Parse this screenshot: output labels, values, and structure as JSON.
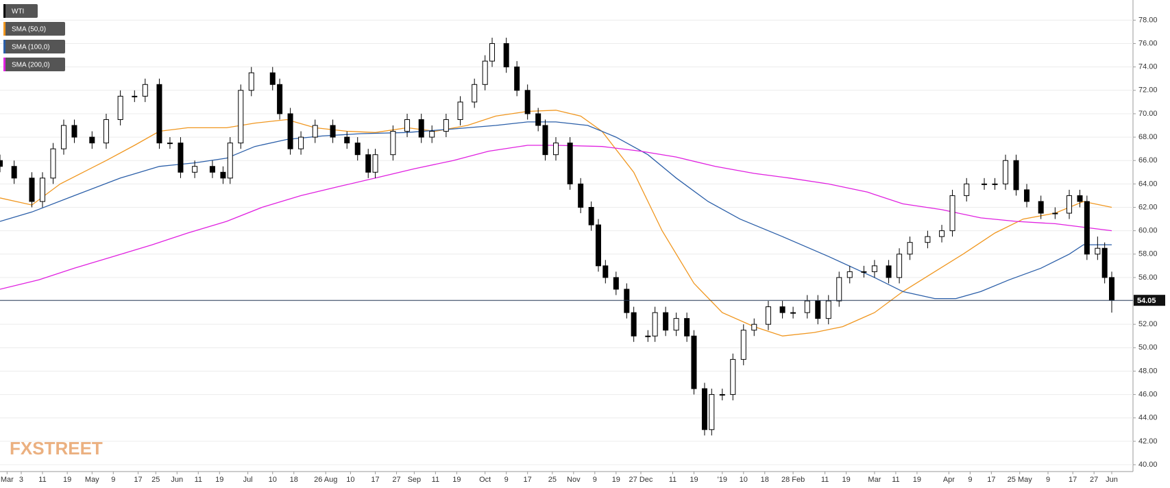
{
  "chart_data": {
    "type": "candlestick",
    "name": "WTI",
    "logo": "FXSTREET",
    "up_color": "#ffffff",
    "down_color": "#000000",
    "xlim": [
      0,
      320
    ],
    "ylim": [
      40,
      78
    ],
    "yticks": [
      {
        "value": 40,
        "label": "40.00"
      },
      {
        "value": 42,
        "label": "42.00"
      },
      {
        "value": 44,
        "label": "44.00"
      },
      {
        "value": 46,
        "label": "46.00"
      },
      {
        "value": 48,
        "label": "48.00"
      },
      {
        "value": 50,
        "label": "50.00"
      },
      {
        "value": 52,
        "label": "52.00"
      },
      {
        "value": 54,
        "label": "54.00"
      },
      {
        "value": 56,
        "label": "56.00"
      },
      {
        "value": 58,
        "label": "58.00"
      },
      {
        "value": 60,
        "label": "60.00"
      },
      {
        "value": 62,
        "label": "62.00"
      },
      {
        "value": 64,
        "label": "64.00"
      },
      {
        "value": 66,
        "label": "66.00"
      },
      {
        "value": 68,
        "label": "68.00"
      },
      {
        "value": 70,
        "label": "70.00"
      },
      {
        "value": 72,
        "label": "72.00"
      },
      {
        "value": 74,
        "label": "74.00"
      },
      {
        "value": 76,
        "label": "76.00"
      },
      {
        "value": 78,
        "label": "78.00"
      }
    ],
    "xticks": [
      {
        "value": 2,
        "label": "Mar"
      },
      {
        "value": 6,
        "label": "3"
      },
      {
        "value": 12,
        "label": "11"
      },
      {
        "value": 19,
        "label": "19"
      },
      {
        "value": 26,
        "label": "May"
      },
      {
        "value": 32,
        "label": "9"
      },
      {
        "value": 39,
        "label": "17"
      },
      {
        "value": 44,
        "label": "25"
      },
      {
        "value": 50,
        "label": "Jun"
      },
      {
        "value": 56,
        "label": "11"
      },
      {
        "value": 62,
        "label": "19"
      },
      {
        "value": 70,
        "label": "Jul"
      },
      {
        "value": 77,
        "label": "10"
      },
      {
        "value": 83,
        "label": "18"
      },
      {
        "value": 92,
        "label": "26 Aug"
      },
      {
        "value": 99,
        "label": "10"
      },
      {
        "value": 106,
        "label": "17"
      },
      {
        "value": 112,
        "label": "27"
      },
      {
        "value": 117,
        "label": "Sep"
      },
      {
        "value": 123,
        "label": "11"
      },
      {
        "value": 129,
        "label": "19"
      },
      {
        "value": 137,
        "label": "Oct"
      },
      {
        "value": 143,
        "label": "9"
      },
      {
        "value": 149,
        "label": "17"
      },
      {
        "value": 156,
        "label": "25"
      },
      {
        "value": 162,
        "label": "Nov"
      },
      {
        "value": 168,
        "label": "9"
      },
      {
        "value": 174,
        "label": "19"
      },
      {
        "value": 181,
        "label": "27 Dec"
      },
      {
        "value": 190,
        "label": "11"
      },
      {
        "value": 196,
        "label": "19"
      },
      {
        "value": 204,
        "label": "'19"
      },
      {
        "value": 210,
        "label": "10"
      },
      {
        "value": 216,
        "label": "18"
      },
      {
        "value": 224,
        "label": "28 Feb"
      },
      {
        "value": 233,
        "label": "11"
      },
      {
        "value": 239,
        "label": "19"
      },
      {
        "value": 247,
        "label": "Mar"
      },
      {
        "value": 253,
        "label": "11"
      },
      {
        "value": 259,
        "label": "19"
      },
      {
        "value": 268,
        "label": "Apr"
      },
      {
        "value": 274,
        "label": "9"
      },
      {
        "value": 280,
        "label": "17"
      },
      {
        "value": 288,
        "label": "25 May"
      },
      {
        "value": 296,
        "label": "9"
      },
      {
        "value": 303,
        "label": "17"
      },
      {
        "value": 309,
        "label": "27"
      },
      {
        "value": 314,
        "label": "Jun"
      }
    ],
    "x": [
      0,
      4,
      9,
      12,
      15,
      18,
      21,
      26,
      30,
      34,
      38,
      41,
      45,
      48,
      51,
      55,
      60,
      63,
      65,
      68,
      71,
      77,
      79,
      82,
      85,
      89,
      94,
      98,
      101,
      104,
      106,
      111,
      115,
      119,
      122,
      126,
      130,
      134,
      137,
      139,
      143,
      146,
      149,
      152,
      154,
      157,
      161,
      164,
      167,
      169,
      171,
      174,
      177,
      179,
      183,
      185,
      188,
      191,
      194,
      196,
      199,
      201,
      204,
      207,
      210,
      213,
      217,
      221,
      224,
      228,
      231,
      234,
      237,
      240,
      244,
      247,
      251,
      254,
      257,
      262,
      266,
      269,
      273,
      278,
      281,
      284,
      287,
      290,
      294,
      298,
      302,
      305,
      307,
      310,
      312,
      314
    ],
    "candles": [
      [
        66,
        66.5,
        65,
        65.5
      ],
      [
        65.5,
        66,
        64,
        64.5
      ],
      [
        64.5,
        65,
        62,
        62.5
      ],
      [
        62.5,
        65,
        62,
        64.5
      ],
      [
        64.5,
        67.5,
        64,
        67
      ],
      [
        67,
        69.5,
        66.5,
        69
      ],
      [
        69,
        69.5,
        67.5,
        68
      ],
      [
        68,
        68.5,
        67,
        67.5
      ],
      [
        67.5,
        70,
        67,
        69.5
      ],
      [
        69.5,
        72,
        69,
        71.5
      ],
      [
        71.5,
        72,
        71,
        71.5
      ],
      [
        71.5,
        73,
        71,
        72.5
      ],
      [
        72.5,
        73,
        67,
        67.5
      ],
      [
        67.5,
        68,
        67,
        67.5
      ],
      [
        67.5,
        68,
        64.5,
        65
      ],
      [
        65,
        66,
        64.5,
        65.5
      ],
      [
        65.5,
        66,
        64.5,
        65
      ],
      [
        65,
        65.5,
        64,
        64.5
      ],
      [
        64.5,
        68,
        64,
        67.5
      ],
      [
        67.5,
        72.5,
        67,
        72
      ],
      [
        72,
        74,
        71.5,
        73.5
      ],
      [
        73.5,
        74,
        72,
        72.5
      ],
      [
        72.5,
        73,
        69.5,
        70
      ],
      [
        70,
        70.5,
        66.5,
        67
      ],
      [
        67,
        68.5,
        66.5,
        68
      ],
      [
        68,
        69.5,
        67.5,
        69
      ],
      [
        69,
        69.5,
        67.5,
        68
      ],
      [
        68,
        68.5,
        67,
        67.5
      ],
      [
        67.5,
        68,
        66,
        66.5
      ],
      [
        66.5,
        67,
        64.5,
        65
      ],
      [
        65,
        67,
        64.5,
        66.5
      ],
      [
        66.5,
        69,
        66,
        68.5
      ],
      [
        68.5,
        70,
        68,
        69.5
      ],
      [
        69.5,
        70,
        67.5,
        68
      ],
      [
        68,
        69,
        67.5,
        68.5
      ],
      [
        68.5,
        70,
        68,
        69.5
      ],
      [
        69.5,
        71.5,
        69,
        71
      ],
      [
        71,
        73,
        70.5,
        72.5
      ],
      [
        72.5,
        75,
        72,
        74.5
      ],
      [
        74.5,
        76.5,
        74,
        76
      ],
      [
        76,
        76.5,
        73.5,
        74
      ],
      [
        74,
        74.5,
        71.5,
        72
      ],
      [
        72,
        72.5,
        69.5,
        70
      ],
      [
        70,
        70.5,
        68.5,
        69
      ],
      [
        69,
        69.5,
        66,
        66.5
      ],
      [
        66.5,
        68,
        66,
        67.5
      ],
      [
        67.5,
        68,
        63.5,
        64
      ],
      [
        64,
        64.5,
        61.5,
        62
      ],
      [
        62,
        62.5,
        60,
        60.5
      ],
      [
        60.5,
        61,
        56.5,
        57
      ],
      [
        57,
        57.5,
        55.5,
        56
      ],
      [
        56,
        56.5,
        54.5,
        55
      ],
      [
        55,
        55.5,
        52.5,
        53
      ],
      [
        53,
        53.5,
        50.5,
        51
      ],
      [
        51,
        51.5,
        50.5,
        51
      ],
      [
        51,
        53.5,
        50.5,
        53
      ],
      [
        53,
        53.5,
        51,
        51.5
      ],
      [
        51.5,
        53,
        51,
        52.5
      ],
      [
        52.5,
        53,
        50.5,
        51
      ],
      [
        51,
        51.5,
        46,
        46.5
      ],
      [
        46.5,
        47,
        42.5,
        43
      ],
      [
        43,
        46.5,
        42.5,
        46
      ],
      [
        46,
        46.5,
        45.5,
        46
      ],
      [
        46,
        49.5,
        45.5,
        49
      ],
      [
        49,
        52,
        48.5,
        51.5
      ],
      [
        51.5,
        52.5,
        51,
        52
      ],
      [
        52,
        54,
        51.5,
        53.5
      ],
      [
        53.5,
        54,
        52.5,
        53
      ],
      [
        53,
        53.5,
        52.5,
        53
      ],
      [
        53,
        54.5,
        52.5,
        54
      ],
      [
        54,
        54.5,
        52,
        52.5
      ],
      [
        52.5,
        54.5,
        52,
        54
      ],
      [
        54,
        56.5,
        53.5,
        56
      ],
      [
        56,
        57,
        55.5,
        56.5
      ],
      [
        56.5,
        57,
        56,
        56.5
      ],
      [
        56.5,
        57.5,
        56,
        57
      ],
      [
        57,
        57.5,
        55.5,
        56
      ],
      [
        56,
        58.5,
        55.5,
        58
      ],
      [
        58,
        59.5,
        57.5,
        59
      ],
      [
        59,
        60,
        58.5,
        59.5
      ],
      [
        59.5,
        60.5,
        59,
        60
      ],
      [
        60,
        63.5,
        59.5,
        63
      ],
      [
        63,
        64.5,
        62.5,
        64
      ],
      [
        64,
        64.5,
        63.5,
        64
      ],
      [
        64,
        64.5,
        63.5,
        64
      ],
      [
        64,
        66.5,
        63.5,
        66
      ],
      [
        66,
        66.5,
        63,
        63.5
      ],
      [
        63.5,
        64,
        62,
        62.5
      ],
      [
        62.5,
        63,
        61,
        61.5
      ],
      [
        61.5,
        62,
        61,
        61.5
      ],
      [
        61.5,
        63.5,
        61,
        63
      ],
      [
        63,
        63.5,
        62,
        62.5
      ],
      [
        62.5,
        63,
        57.5,
        58
      ],
      [
        58,
        59.5,
        57.5,
        58.5
      ],
      [
        58.5,
        59,
        55.5,
        56
      ],
      [
        56,
        56.5,
        53,
        54.05
      ]
    ],
    "last_price": 54.05,
    "series": [
      {
        "name": "SMA (50,0)",
        "color": "#f0961e",
        "x": [
          0,
          9,
          17,
          30,
          38,
          45,
          53,
          64,
          72,
          81,
          89,
          98,
          106,
          115,
          123,
          132,
          140,
          149,
          157,
          164,
          170,
          179,
          187,
          196,
          204,
          213,
          221,
          230,
          238,
          247,
          255,
          264,
          272,
          281,
          289,
          298,
          306,
          314
        ],
        "values": [
          62.8,
          62.2,
          64,
          66,
          67.3,
          68.5,
          68.8,
          68.8,
          69.2,
          69.5,
          68.8,
          68.5,
          68.4,
          68.8,
          68.5,
          69,
          69.8,
          70.2,
          70.3,
          69.8,
          68.5,
          65,
          60,
          55.5,
          53,
          51.8,
          51,
          51.3,
          51.8,
          53,
          54.8,
          56.5,
          58,
          59.8,
          61,
          61.5,
          62.5,
          62
        ]
      },
      {
        "name": "SMA (100,0)",
        "color": "#2a5ea8",
        "x": [
          0,
          9,
          21,
          34,
          45,
          55,
          64,
          72,
          81,
          91,
          102,
          115,
          128,
          140,
          149,
          157,
          166,
          174,
          183,
          191,
          200,
          209,
          221,
          234,
          247,
          255,
          264,
          270,
          277,
          285,
          294,
          302,
          306,
          314
        ],
        "values": [
          60.8,
          61.6,
          63,
          64.5,
          65.5,
          65.8,
          66.2,
          67.2,
          67.8,
          68.1,
          68.3,
          68.4,
          68.7,
          69,
          69.3,
          69.3,
          69,
          68,
          66.5,
          64.5,
          62.5,
          61,
          59.5,
          57.8,
          56,
          54.8,
          54.2,
          54.2,
          54.8,
          55.8,
          56.8,
          58,
          58.8,
          58.8
        ]
      },
      {
        "name": "SMA (200,0)",
        "color": "#e020e0",
        "x": [
          0,
          11,
          21,
          32,
          43,
          53,
          64,
          74,
          85,
          96,
          106,
          117,
          128,
          138,
          149,
          157,
          170,
          181,
          191,
          202,
          213,
          223,
          234,
          245,
          255,
          266,
          277,
          287,
          298,
          306,
          314
        ],
        "values": [
          55,
          55.8,
          56.8,
          57.8,
          58.8,
          59.8,
          60.8,
          62,
          63,
          63.8,
          64.5,
          65.3,
          66,
          66.8,
          67.3,
          67.3,
          67.2,
          66.8,
          66.3,
          65.5,
          64.9,
          64.5,
          64,
          63.3,
          62.3,
          61.8,
          61.1,
          60.8,
          60.6,
          60.3,
          60
        ]
      }
    ],
    "grid": true
  }
}
